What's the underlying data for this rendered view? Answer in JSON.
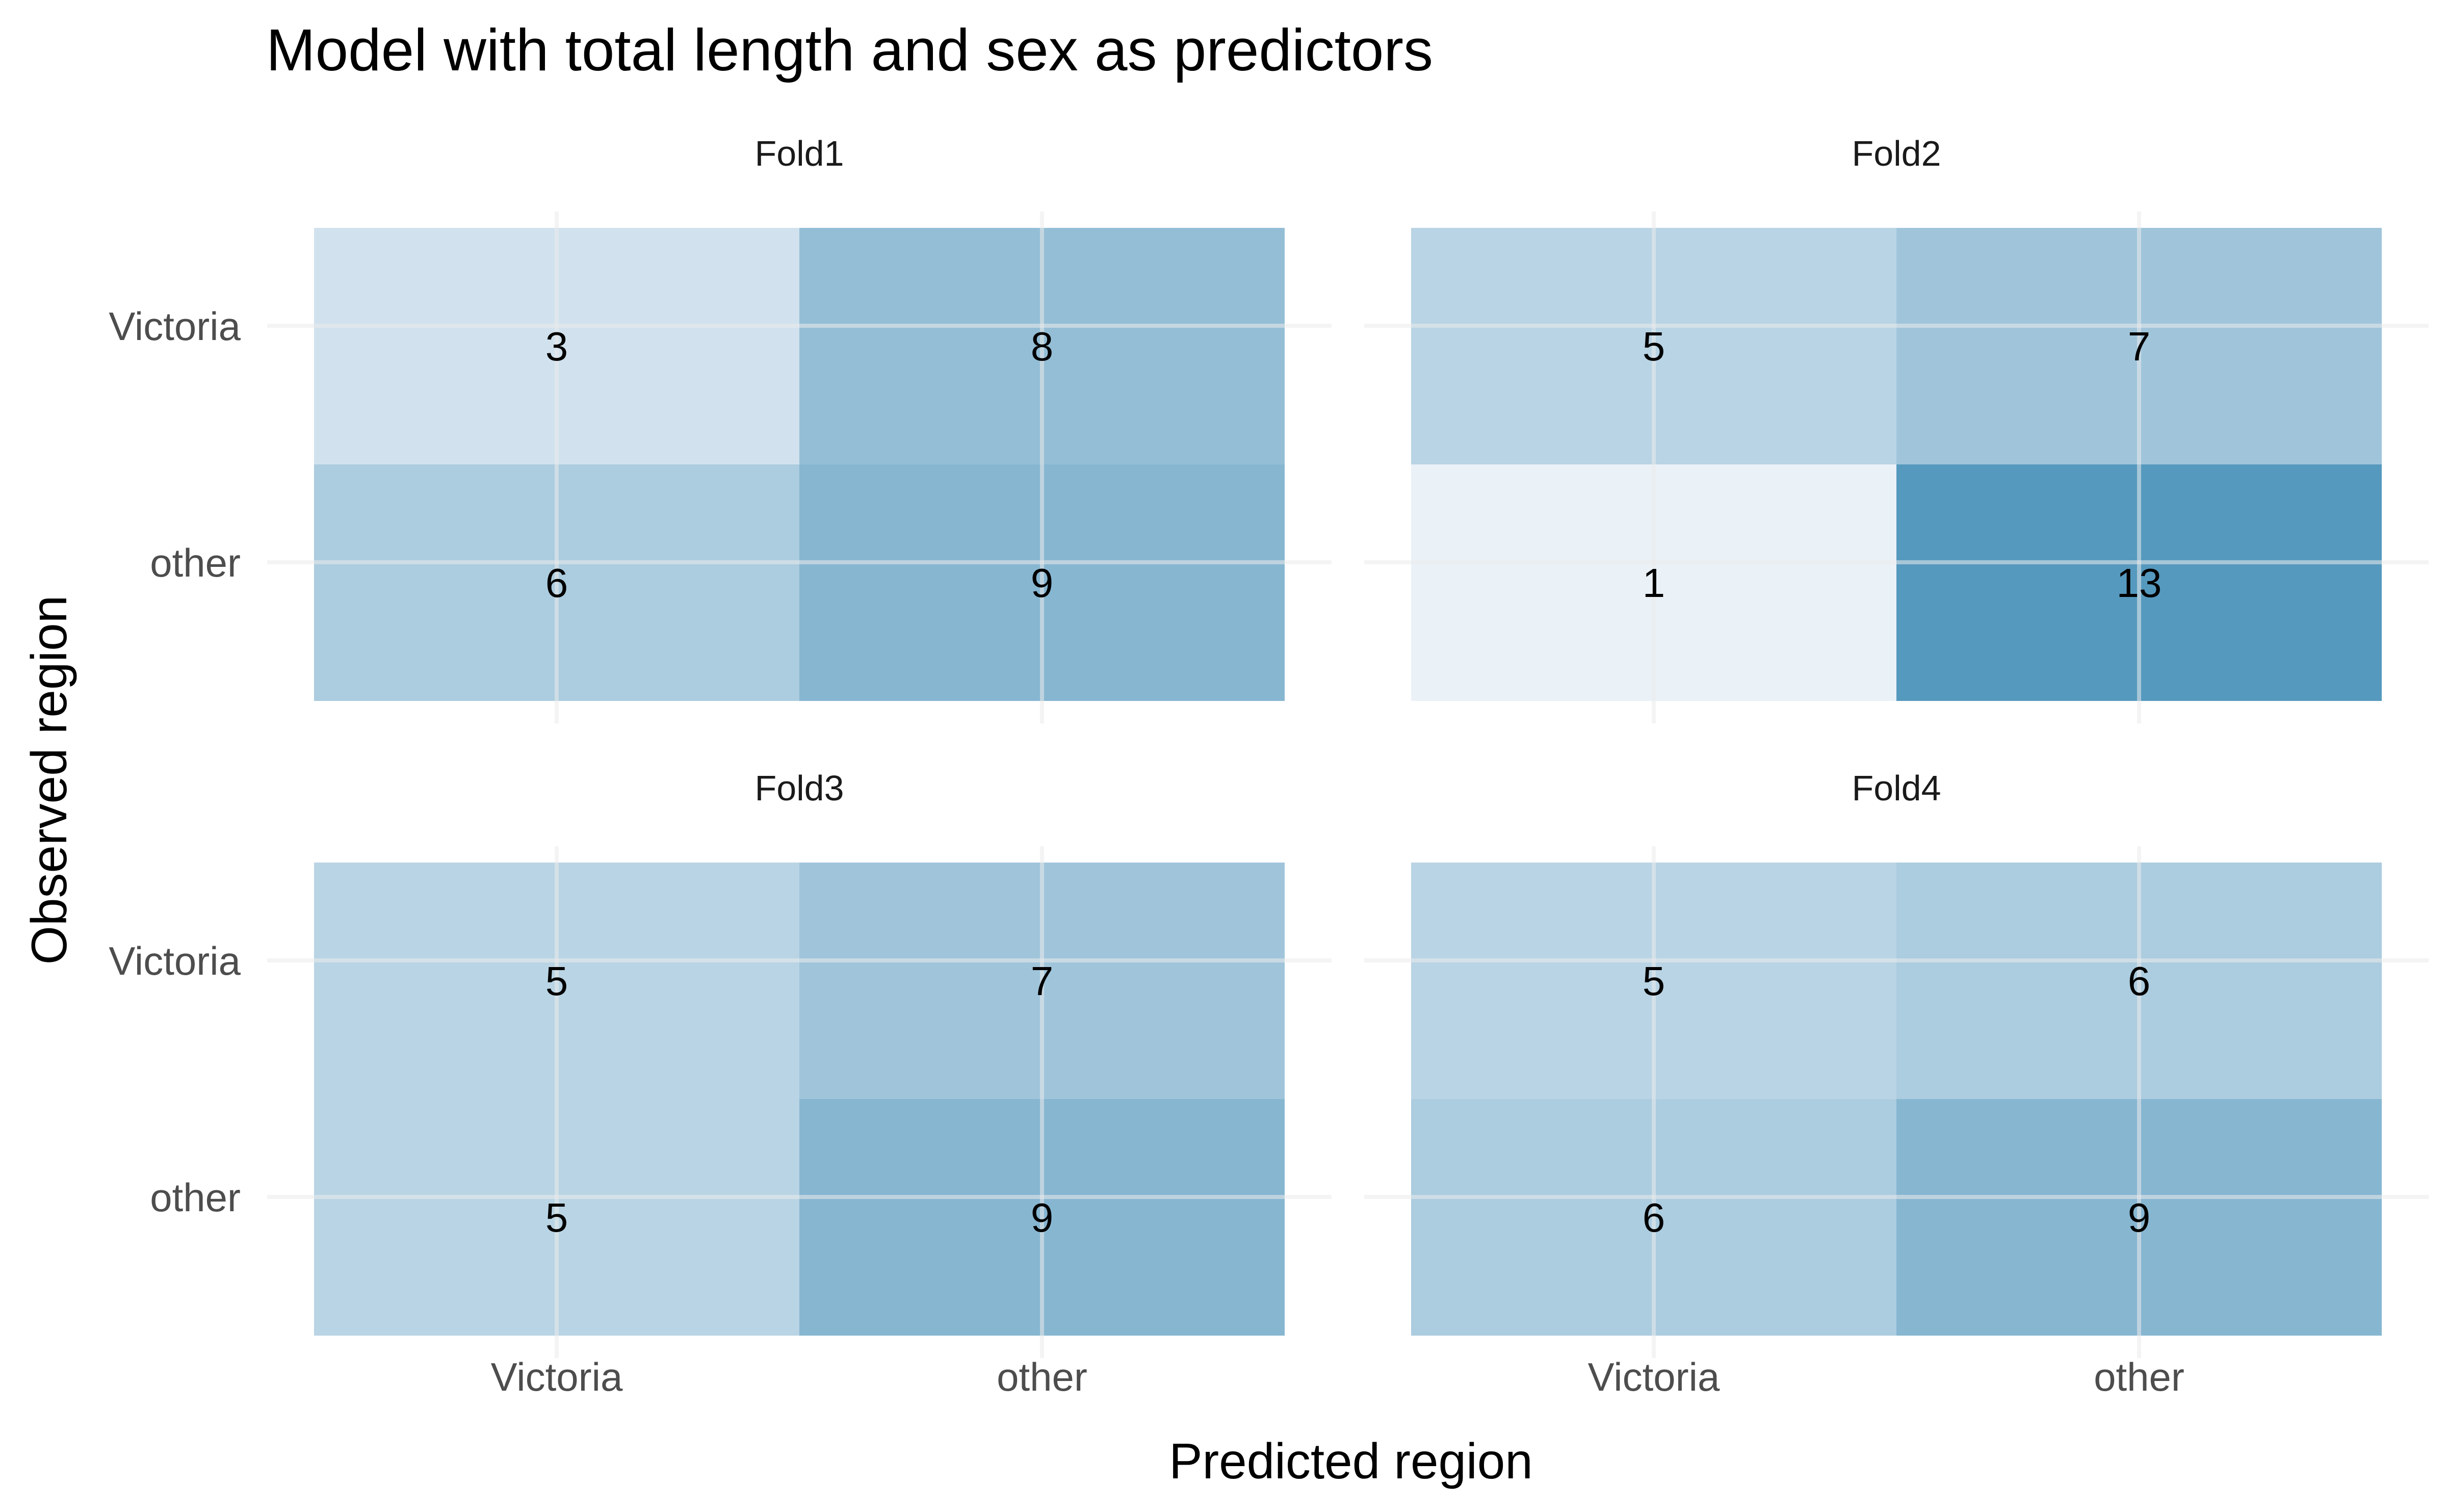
{
  "chart_data": {
    "type": "heatmap",
    "title": "Model with total length and sex as predictors",
    "xlabel": "Predicted region",
    "ylabel": "Observed region",
    "x_categories": [
      "Victoria",
      "other"
    ],
    "y_categories": [
      "Victoria",
      "other"
    ],
    "grid": true,
    "legend": "none",
    "colors": {
      "low": "#eaf1f7",
      "high": "#5699be",
      "gridline": "#ebebeb"
    },
    "color_range": [
      1,
      13
    ],
    "panels": [
      {
        "name": "Fold1",
        "cells": [
          {
            "observed": "Victoria",
            "predicted": "Victoria",
            "value": 3
          },
          {
            "observed": "Victoria",
            "predicted": "other",
            "value": 8
          },
          {
            "observed": "other",
            "predicted": "Victoria",
            "value": 6
          },
          {
            "observed": "other",
            "predicted": "other",
            "value": 9
          }
        ]
      },
      {
        "name": "Fold2",
        "cells": [
          {
            "observed": "Victoria",
            "predicted": "Victoria",
            "value": 5
          },
          {
            "observed": "Victoria",
            "predicted": "other",
            "value": 7
          },
          {
            "observed": "other",
            "predicted": "Victoria",
            "value": 1
          },
          {
            "observed": "other",
            "predicted": "other",
            "value": 13
          }
        ]
      },
      {
        "name": "Fold3",
        "cells": [
          {
            "observed": "Victoria",
            "predicted": "Victoria",
            "value": 5
          },
          {
            "observed": "Victoria",
            "predicted": "other",
            "value": 7
          },
          {
            "observed": "other",
            "predicted": "Victoria",
            "value": 5
          },
          {
            "observed": "other",
            "predicted": "other",
            "value": 9
          }
        ]
      },
      {
        "name": "Fold4",
        "cells": [
          {
            "observed": "Victoria",
            "predicted": "Victoria",
            "value": 5
          },
          {
            "observed": "Victoria",
            "predicted": "other",
            "value": 6
          },
          {
            "observed": "other",
            "predicted": "Victoria",
            "value": 6
          },
          {
            "observed": "other",
            "predicted": "other",
            "value": 9
          }
        ]
      }
    ]
  }
}
